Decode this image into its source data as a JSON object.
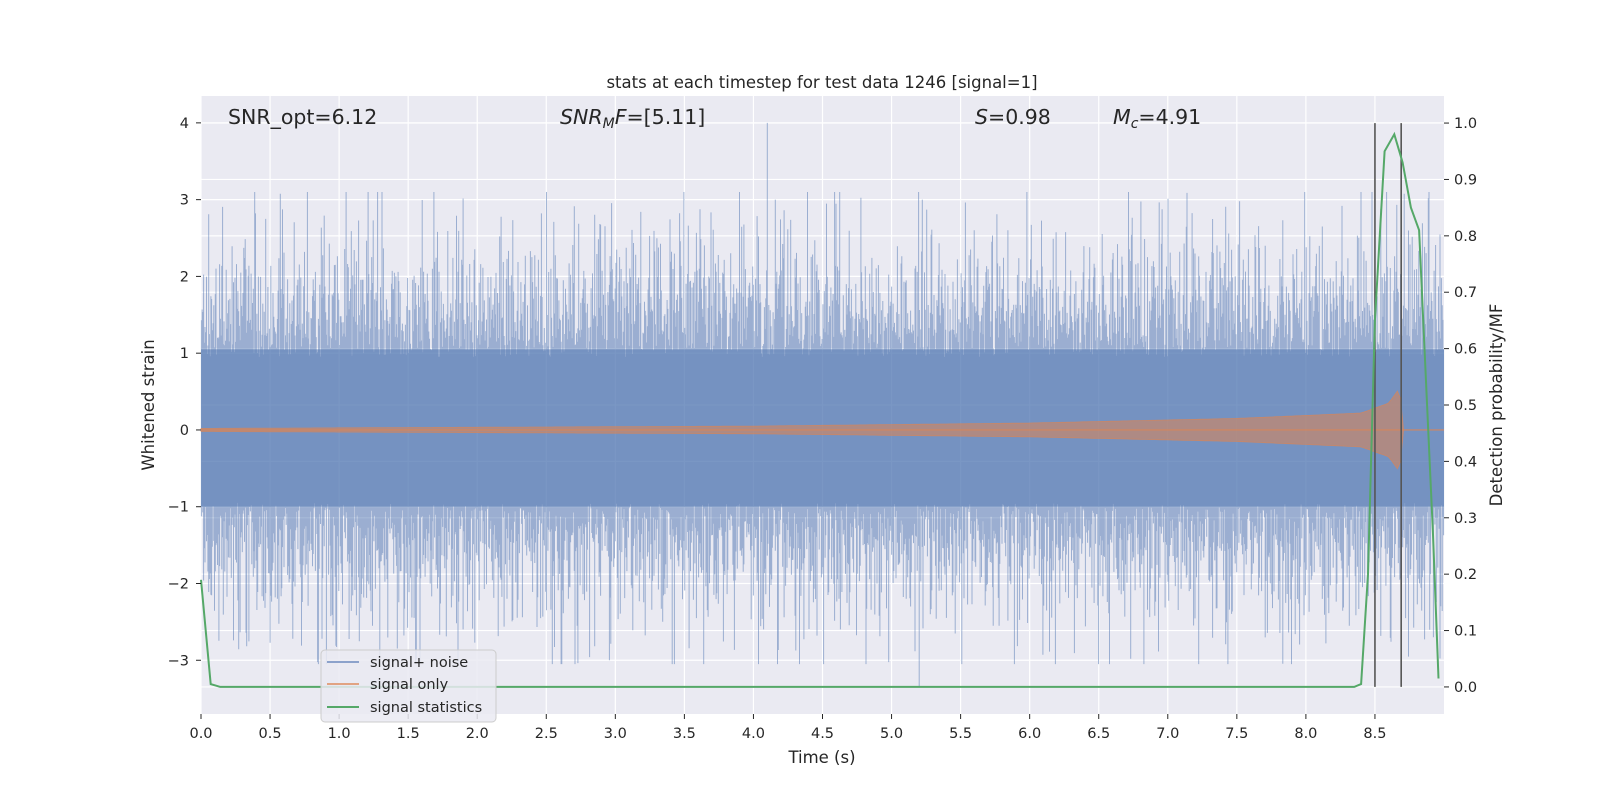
{
  "chart_data": {
    "type": "line",
    "title": "stats at each timestep for test data 1246 [signal=1]",
    "xlabel": "Time (s)",
    "ylabel_left": "Whitened strain",
    "ylabel_right": "Detection probability/MF",
    "xlim": [
      0.0,
      9.0
    ],
    "ylim_left": [
      -3.7,
      4.35
    ],
    "ylim_right": [
      -0.048,
      1.048
    ],
    "xticks": [
      0.0,
      0.5,
      1.0,
      1.5,
      2.0,
      2.5,
      3.0,
      3.5,
      4.0,
      4.5,
      5.0,
      5.5,
      6.0,
      6.5,
      7.0,
      7.5,
      8.0,
      8.5
    ],
    "xtick_labels": [
      "0.0",
      "0.5",
      "1.0",
      "1.5",
      "2.0",
      "2.5",
      "3.0",
      "3.5",
      "4.0",
      "4.5",
      "5.0",
      "5.5",
      "6.0",
      "6.5",
      "7.0",
      "7.5",
      "8.0",
      "8.5"
    ],
    "yticks_left": [
      -3,
      -2,
      -1,
      0,
      1,
      2,
      3,
      4
    ],
    "ytick_labels_left": [
      "−3",
      "−2",
      "−1",
      "0",
      "1",
      "2",
      "3",
      "4"
    ],
    "yticks_right": [
      0.0,
      0.1,
      0.2,
      0.3,
      0.4,
      0.5,
      0.6,
      0.7,
      0.8,
      0.9,
      1.0
    ],
    "ytick_labels_right": [
      "0.0",
      "0.1",
      "0.2",
      "0.3",
      "0.4",
      "0.5",
      "0.6",
      "0.7",
      "0.8",
      "0.9",
      "1.0"
    ],
    "annotations": {
      "snr_opt": "SNR_opt=6.12",
      "snr_mf": {
        "main": "SNR",
        "sub": "M",
        "italic_tail": "F",
        "value": "=[5.11]"
      },
      "s": {
        "symbol": "S",
        "value": "=0.98"
      },
      "mc": {
        "symbol": "M",
        "sub": "c",
        "value": "=4.91"
      }
    },
    "vlines_x": [
      8.5,
      8.69
    ],
    "legend": {
      "placement": "lower-left",
      "entries": [
        "signal+ noise",
        "signal only",
        "signal statistics"
      ]
    },
    "series": [
      {
        "name": "signal+ noise",
        "axis": "left",
        "color": "#4c72b0",
        "alpha": 0.5,
        "description_of_envelope": "dense whitened noise, roughly within −3.3 to 4.0",
        "peak_max": 4.0,
        "peak_min": -3.35
      },
      {
        "name": "signal only",
        "axis": "left",
        "color": "#dd8452",
        "amplitude_envelope": [
          [
            0.0,
            0.02
          ],
          [
            4.0,
            0.05
          ],
          [
            6.0,
            0.09
          ],
          [
            7.5,
            0.15
          ],
          [
            8.4,
            0.22
          ],
          [
            8.6,
            0.35
          ],
          [
            8.68,
            0.55
          ],
          [
            8.7,
            0.0
          ],
          [
            9.0,
            0.0
          ]
        ]
      },
      {
        "name": "signal statistics",
        "axis": "right",
        "color": "#55a868",
        "x": [
          0.0,
          0.07,
          0.14,
          0.3,
          1.0,
          2.0,
          3.0,
          4.0,
          5.0,
          6.0,
          7.0,
          8.0,
          8.35,
          8.4,
          8.45,
          8.5,
          8.57,
          8.64,
          8.7,
          8.76,
          8.82,
          8.92,
          8.96
        ],
        "y": [
          0.19,
          0.005,
          0.0,
          0.0,
          0.0,
          0.0,
          0.0,
          0.0,
          0.0,
          0.0,
          0.0,
          0.0,
          0.0,
          0.005,
          0.2,
          0.65,
          0.95,
          0.98,
          0.93,
          0.85,
          0.81,
          0.27,
          0.015
        ]
      }
    ]
  }
}
